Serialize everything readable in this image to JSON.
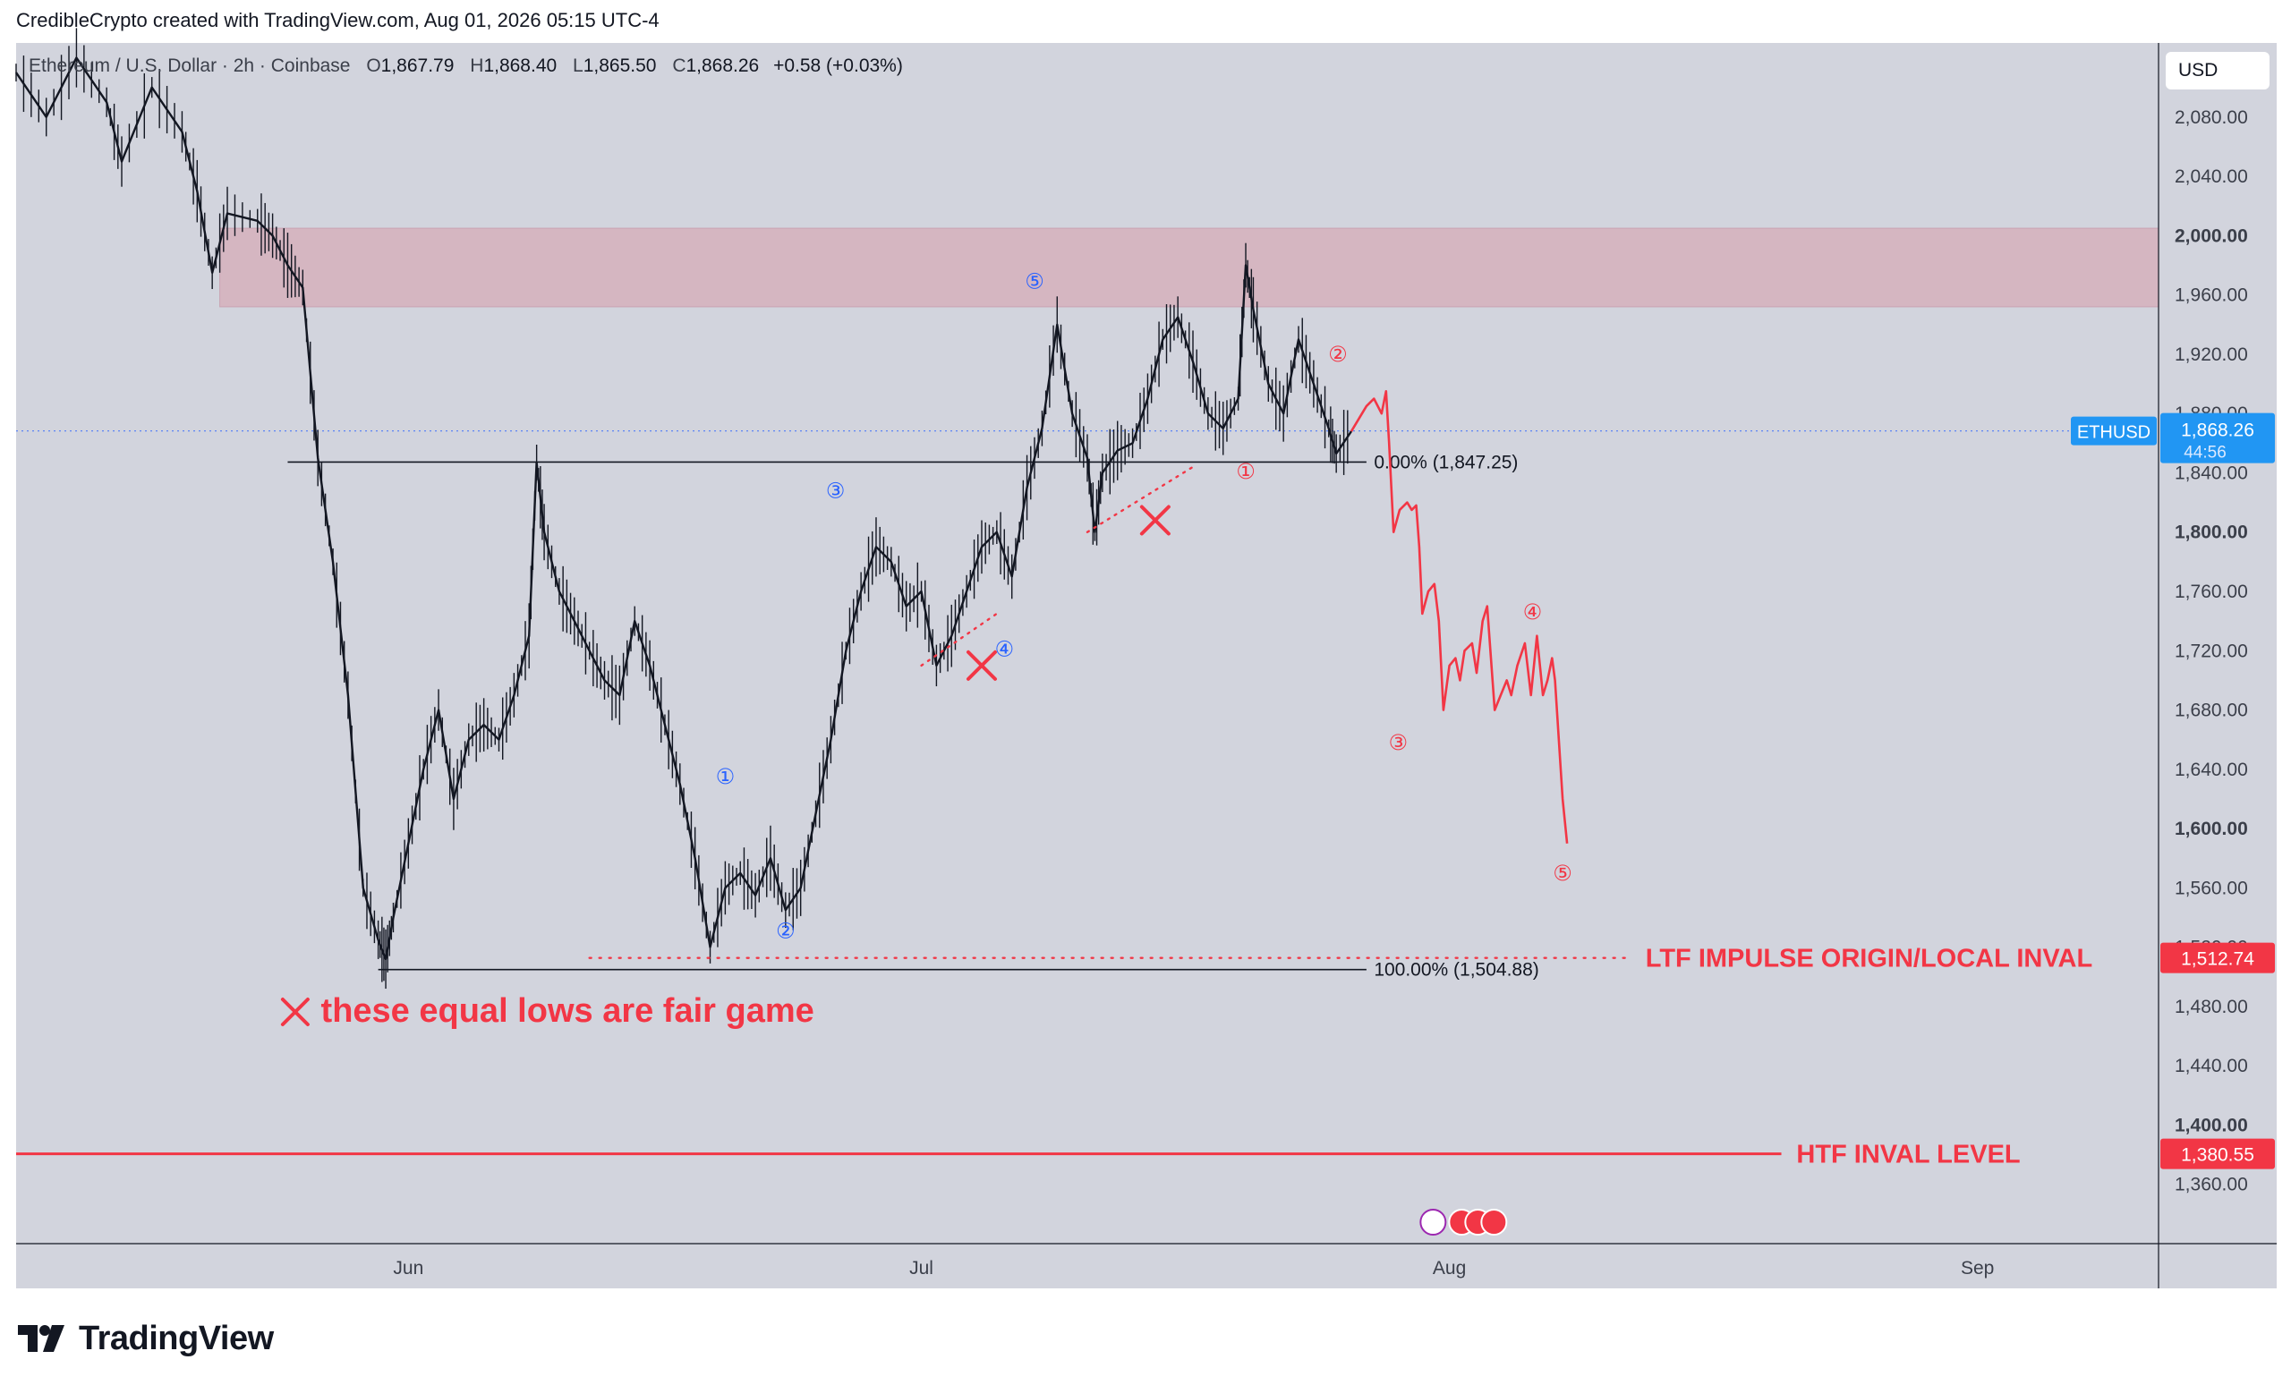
{
  "attribution": "CredibleCrypto created with TradingView.com, Aug 01, 2026 05:15 UTC-4",
  "legend": {
    "symbol": "Ethereum / U.S. Dollar · 2h · Coinbase",
    "open_label": "O",
    "open": "1,867.79",
    "high_label": "H",
    "high": "1,868.40",
    "low_label": "L",
    "low": "1,865.50",
    "close_label": "C",
    "close": "1,868.26",
    "change": "+0.58 (+0.03%)"
  },
  "currency": "USD",
  "footer_brand": "TradingView",
  "chart_data": {
    "type": "line",
    "symbol": "ETHUSD",
    "ylim": [
      1320,
      2130
    ],
    "y_ticks": [
      "2,080.00",
      "2,040.00",
      "2,000.00",
      "1,960.00",
      "1,920.00",
      "1,880.00",
      "1,840.00",
      "1,800.00",
      "1,760.00",
      "1,720.00",
      "1,680.00",
      "1,640.00",
      "1,600.00",
      "1,560.00",
      "1,520.00",
      "1,480.00",
      "1,440.00",
      "1,400.00",
      "1,360.00"
    ],
    "y_tick_values": [
      2080,
      2040,
      2000,
      1960,
      1920,
      1880,
      1840,
      1800,
      1760,
      1720,
      1680,
      1640,
      1600,
      1560,
      1520,
      1480,
      1440,
      1400,
      1360
    ],
    "x_ticks": [
      "Jun",
      "Jul",
      "Aug",
      "Sep"
    ],
    "x_tick_values": [
      26,
      60,
      95,
      130
    ],
    "price_path": [
      [
        0,
        2110
      ],
      [
        2,
        2080
      ],
      [
        4,
        2120
      ],
      [
        6,
        2090
      ],
      [
        7,
        2050
      ],
      [
        9,
        2100
      ],
      [
        11,
        2070
      ],
      [
        12,
        2030
      ],
      [
        13,
        1975
      ],
      [
        14,
        2015
      ],
      [
        16,
        2010
      ],
      [
        17,
        2000
      ],
      [
        18,
        1980
      ],
      [
        19,
        1965
      ],
      [
        20,
        1850
      ],
      [
        21,
        1780
      ],
      [
        22,
        1690
      ],
      [
        23,
        1560
      ],
      [
        24,
        1525
      ],
      [
        24.5,
        1512
      ],
      [
        25,
        1540
      ],
      [
        26,
        1590
      ],
      [
        27,
        1640
      ],
      [
        28,
        1680
      ],
      [
        29,
        1620
      ],
      [
        30,
        1660
      ],
      [
        31,
        1670
      ],
      [
        32,
        1660
      ],
      [
        33,
        1690
      ],
      [
        34,
        1730
      ],
      [
        34.5,
        1847
      ],
      [
        35,
        1800
      ],
      [
        36,
        1760
      ],
      [
        37,
        1740
      ],
      [
        38,
        1720
      ],
      [
        39,
        1700
      ],
      [
        40,
        1690
      ],
      [
        41,
        1740
      ],
      [
        42,
        1710
      ],
      [
        43,
        1670
      ],
      [
        44,
        1630
      ],
      [
        45,
        1580
      ],
      [
        46,
        1520
      ],
      [
        47,
        1560
      ],
      [
        48,
        1570
      ],
      [
        49,
        1555
      ],
      [
        50,
        1580
      ],
      [
        51,
        1545
      ],
      [
        52,
        1560
      ],
      [
        53,
        1610
      ],
      [
        54,
        1660
      ],
      [
        55,
        1720
      ],
      [
        56,
        1760
      ],
      [
        57,
        1790
      ],
      [
        58,
        1780
      ],
      [
        59,
        1750
      ],
      [
        60,
        1760
      ],
      [
        61,
        1710
      ],
      [
        62,
        1730
      ],
      [
        63,
        1760
      ],
      [
        64,
        1790
      ],
      [
        65,
        1800
      ],
      [
        66,
        1770
      ],
      [
        67,
        1830
      ],
      [
        68,
        1870
      ],
      [
        69,
        1940
      ],
      [
        70,
        1880
      ],
      [
        71,
        1850
      ],
      [
        71.5,
        1800
      ],
      [
        72,
        1840
      ],
      [
        73,
        1855
      ],
      [
        74,
        1860
      ],
      [
        75,
        1890
      ],
      [
        76,
        1930
      ],
      [
        77,
        1945
      ],
      [
        78,
        1915
      ],
      [
        79,
        1880
      ],
      [
        80,
        1870
      ],
      [
        81,
        1890
      ],
      [
        81.5,
        1980
      ],
      [
        82,
        1950
      ],
      [
        83,
        1900
      ],
      [
        84,
        1880
      ],
      [
        85,
        1930
      ],
      [
        86,
        1900
      ],
      [
        87,
        1870
      ],
      [
        87.5,
        1853
      ],
      [
        88.5,
        1868
      ]
    ],
    "projection_path": [
      [
        88.5,
        1868
      ],
      [
        89.5,
        1885
      ],
      [
        90,
        1890
      ],
      [
        90.5,
        1880
      ],
      [
        90.8,
        1895
      ],
      [
        91,
        1860
      ],
      [
        91.3,
        1800
      ],
      [
        91.7,
        1815
      ],
      [
        92.2,
        1820
      ],
      [
        92.5,
        1815
      ],
      [
        92.8,
        1818
      ],
      [
        93,
        1790
      ],
      [
        93.2,
        1745
      ],
      [
        93.6,
        1760
      ],
      [
        94,
        1765
      ],
      [
        94.3,
        1740
      ],
      [
        94.6,
        1680
      ],
      [
        95,
        1710
      ],
      [
        95.4,
        1715
      ],
      [
        95.7,
        1700
      ],
      [
        96,
        1720
      ],
      [
        96.5,
        1725
      ],
      [
        96.8,
        1705
      ],
      [
        97.2,
        1740
      ],
      [
        97.5,
        1750
      ],
      [
        98,
        1680
      ],
      [
        98.4,
        1690
      ],
      [
        98.8,
        1700
      ],
      [
        99.1,
        1690
      ],
      [
        99.5,
        1710
      ],
      [
        100,
        1725
      ],
      [
        100.4,
        1690
      ],
      [
        100.8,
        1730
      ],
      [
        101.2,
        1690
      ],
      [
        101.5,
        1700
      ],
      [
        101.8,
        1715
      ],
      [
        102,
        1700
      ],
      [
        102.5,
        1620
      ],
      [
        102.8,
        1590
      ]
    ],
    "resistance_zone": [
      1952,
      2005
    ],
    "fib_levels": [
      {
        "value": 1847.25,
        "label": "0.00% (1,847.25)"
      },
      {
        "value": 1504.88,
        "label": "100.00% (1,504.88)"
      }
    ],
    "levels": [
      {
        "value": 1512.74,
        "label": "LTF IMPULSE ORIGIN/LOCAL INVAL",
        "tag": "1,512.74"
      },
      {
        "value": 1380.55,
        "label": "HTF INVAL LEVEL",
        "tag": "1,380.55"
      }
    ],
    "current_price": {
      "symbol": "ETHUSD",
      "price": "1,868.26",
      "countdown": "44:56",
      "value": 1868.26
    },
    "blue_waves": [
      {
        "label": "①",
        "x": 47,
        "y": 1635
      },
      {
        "label": "②",
        "x": 51,
        "y": 1531
      },
      {
        "label": "③",
        "x": 54.3,
        "y": 1828
      },
      {
        "label": "④",
        "x": 65.5,
        "y": 1721
      },
      {
        "label": "⑤",
        "x": 67.5,
        "y": 1969
      }
    ],
    "red_waves": [
      {
        "label": "①",
        "x": 81.5,
        "y": 1841
      },
      {
        "label": "②",
        "x": 87.6,
        "y": 1920
      },
      {
        "label": "③",
        "x": 91.6,
        "y": 1658
      },
      {
        "label": "④",
        "x": 100.5,
        "y": 1746
      },
      {
        "label": "⑤",
        "x": 102.5,
        "y": 1570
      }
    ],
    "trendlines": [
      {
        "from": [
          60,
          1710
        ],
        "to": [
          65,
          1745
        ]
      },
      {
        "from": [
          71,
          1800
        ],
        "to": [
          78,
          1844
        ]
      }
    ],
    "x_marks": [
      {
        "x": 64,
        "y": 1710
      },
      {
        "x": 75.5,
        "y": 1808
      }
    ],
    "note": "these equal lows are fair game"
  }
}
